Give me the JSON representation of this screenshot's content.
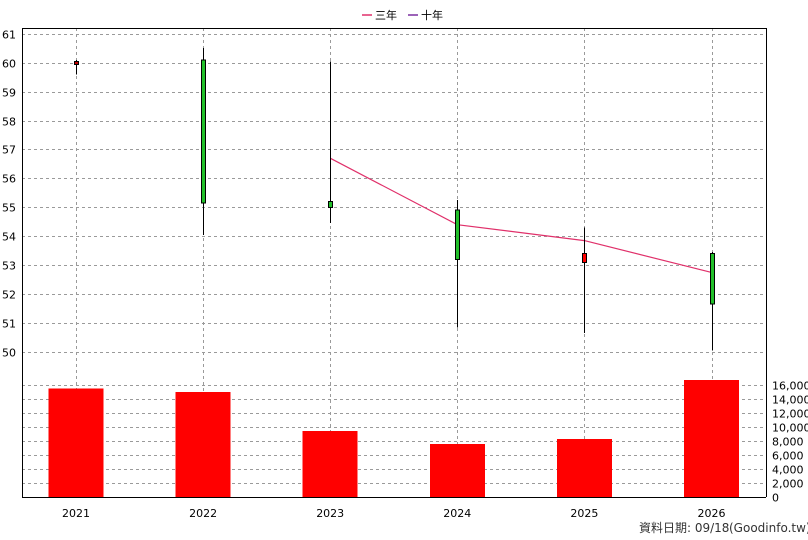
{
  "chart_data": {
    "type": "candlestick",
    "legend": {
      "placement": "top-center",
      "items": [
        {
          "label": "三年",
          "color": "#e0306a"
        },
        {
          "label": "十年",
          "color": "#7a2fa0"
        }
      ]
    },
    "categories": [
      "2021",
      "2022",
      "2023",
      "2024",
      "2025",
      "2026"
    ],
    "price": {
      "ylim": [
        49.1,
        61.2
      ],
      "ticks": [
        50,
        51,
        52,
        53,
        54,
        55,
        56,
        57,
        58,
        59,
        60,
        61
      ],
      "candles": [
        {
          "year": "2021",
          "open": 60.05,
          "close": 60.05,
          "high": 60.1,
          "low": 59.6,
          "color": "#c00000"
        },
        {
          "year": "2022",
          "open": 55.15,
          "close": 60.1,
          "high": 60.5,
          "low": 54.05,
          "color": "#22c02a"
        },
        {
          "year": "2023",
          "open": 55.0,
          "close": 55.2,
          "high": 60.05,
          "low": 54.45,
          "color": "#22c02a"
        },
        {
          "year": "2024",
          "open": 53.2,
          "close": 54.9,
          "high": 55.25,
          "low": 50.85,
          "color": "#22c02a"
        },
        {
          "year": "2025",
          "open": 53.1,
          "close": 53.4,
          "high": 54.3,
          "low": 50.65,
          "color": "#ff0000"
        },
        {
          "year": "2026",
          "open": 51.65,
          "close": 53.4,
          "high": 53.45,
          "low": 50.05,
          "color": "#22c02a"
        }
      ],
      "series": [
        {
          "name": "三年",
          "color": "#e0306a",
          "points": [
            {
              "x": "2023",
              "y": 56.7
            },
            {
              "x": "2024",
              "y": 54.4
            },
            {
              "x": "2025",
              "y": 53.85
            },
            {
              "x": "2026",
              "y": 52.75
            }
          ]
        }
      ]
    },
    "volume": {
      "ylim": [
        0,
        17000
      ],
      "ticks": [
        0,
        2000,
        4000,
        6000,
        8000,
        10000,
        12000,
        14000,
        16000
      ],
      "tick_labels": [
        "0",
        "2,000",
        "4,000",
        "6,000",
        "8,000",
        "10,000",
        "12,000",
        "14,000",
        "16,000"
      ],
      "color": "#ff0000",
      "values": [
        15500,
        15000,
        9400,
        7600,
        8300,
        16700
      ]
    },
    "grid": true
  },
  "footer": {
    "date_label": "資料日期: 09/18",
    "source": "(Goodinfo.tw)"
  }
}
